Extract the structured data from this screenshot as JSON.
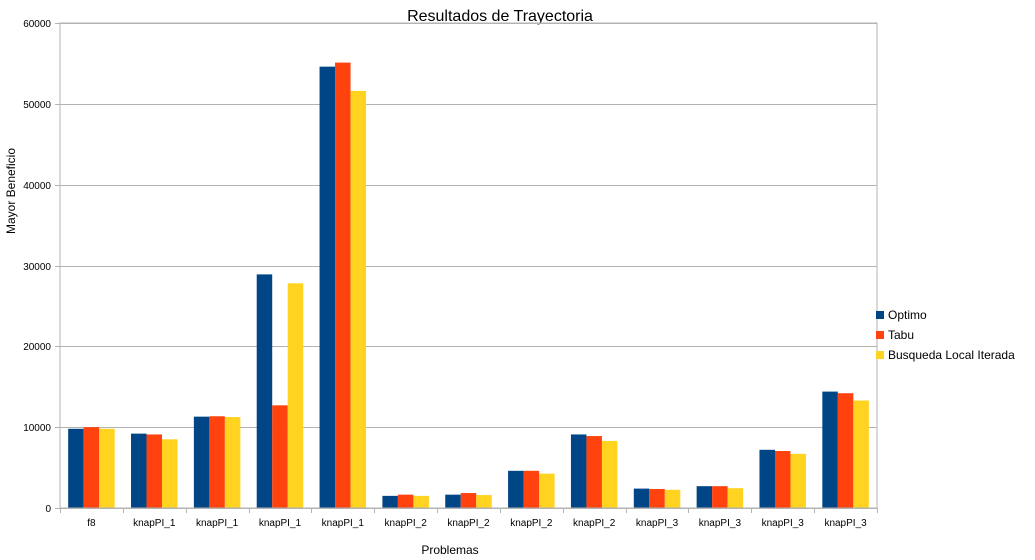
{
  "chart_data": {
    "type": "bar",
    "title": "Resultados de Trayectoria",
    "xlabel": "Problemas",
    "ylabel": "Mayor Beneficio",
    "ylim": [
      0,
      60000
    ],
    "yticks": [
      0,
      10000,
      20000,
      30000,
      40000,
      50000,
      60000
    ],
    "grid": true,
    "legend_position": "right",
    "categories": [
      "f8",
      "knapPI_1",
      "knapPI_1",
      "knapPI_1",
      "knapPI_1",
      "knapPI_2",
      "knapPI_2",
      "knapPI_2",
      "knapPI_2",
      "knapPI_3",
      "knapPI_3",
      "knapPI_3",
      "knapPI_3"
    ],
    "series": [
      {
        "name": "Optimo",
        "color": "#004586",
        "values": [
          9800,
          9200,
          11300,
          28900,
          54600,
          1500,
          1650,
          4600,
          9100,
          2400,
          2700,
          7200,
          14400
        ]
      },
      {
        "name": "Tabu",
        "color": "#ff420e",
        "values": [
          10000,
          9100,
          11350,
          12700,
          55100,
          1650,
          1850,
          4600,
          8900,
          2350,
          2700,
          7050,
          14200
        ]
      },
      {
        "name": "Busqueda Local Iterada",
        "color": "#ffd320",
        "values": [
          9800,
          8500,
          11250,
          27800,
          51600,
          1500,
          1600,
          4250,
          8300,
          2250,
          2450,
          6700,
          13300
        ]
      }
    ]
  }
}
